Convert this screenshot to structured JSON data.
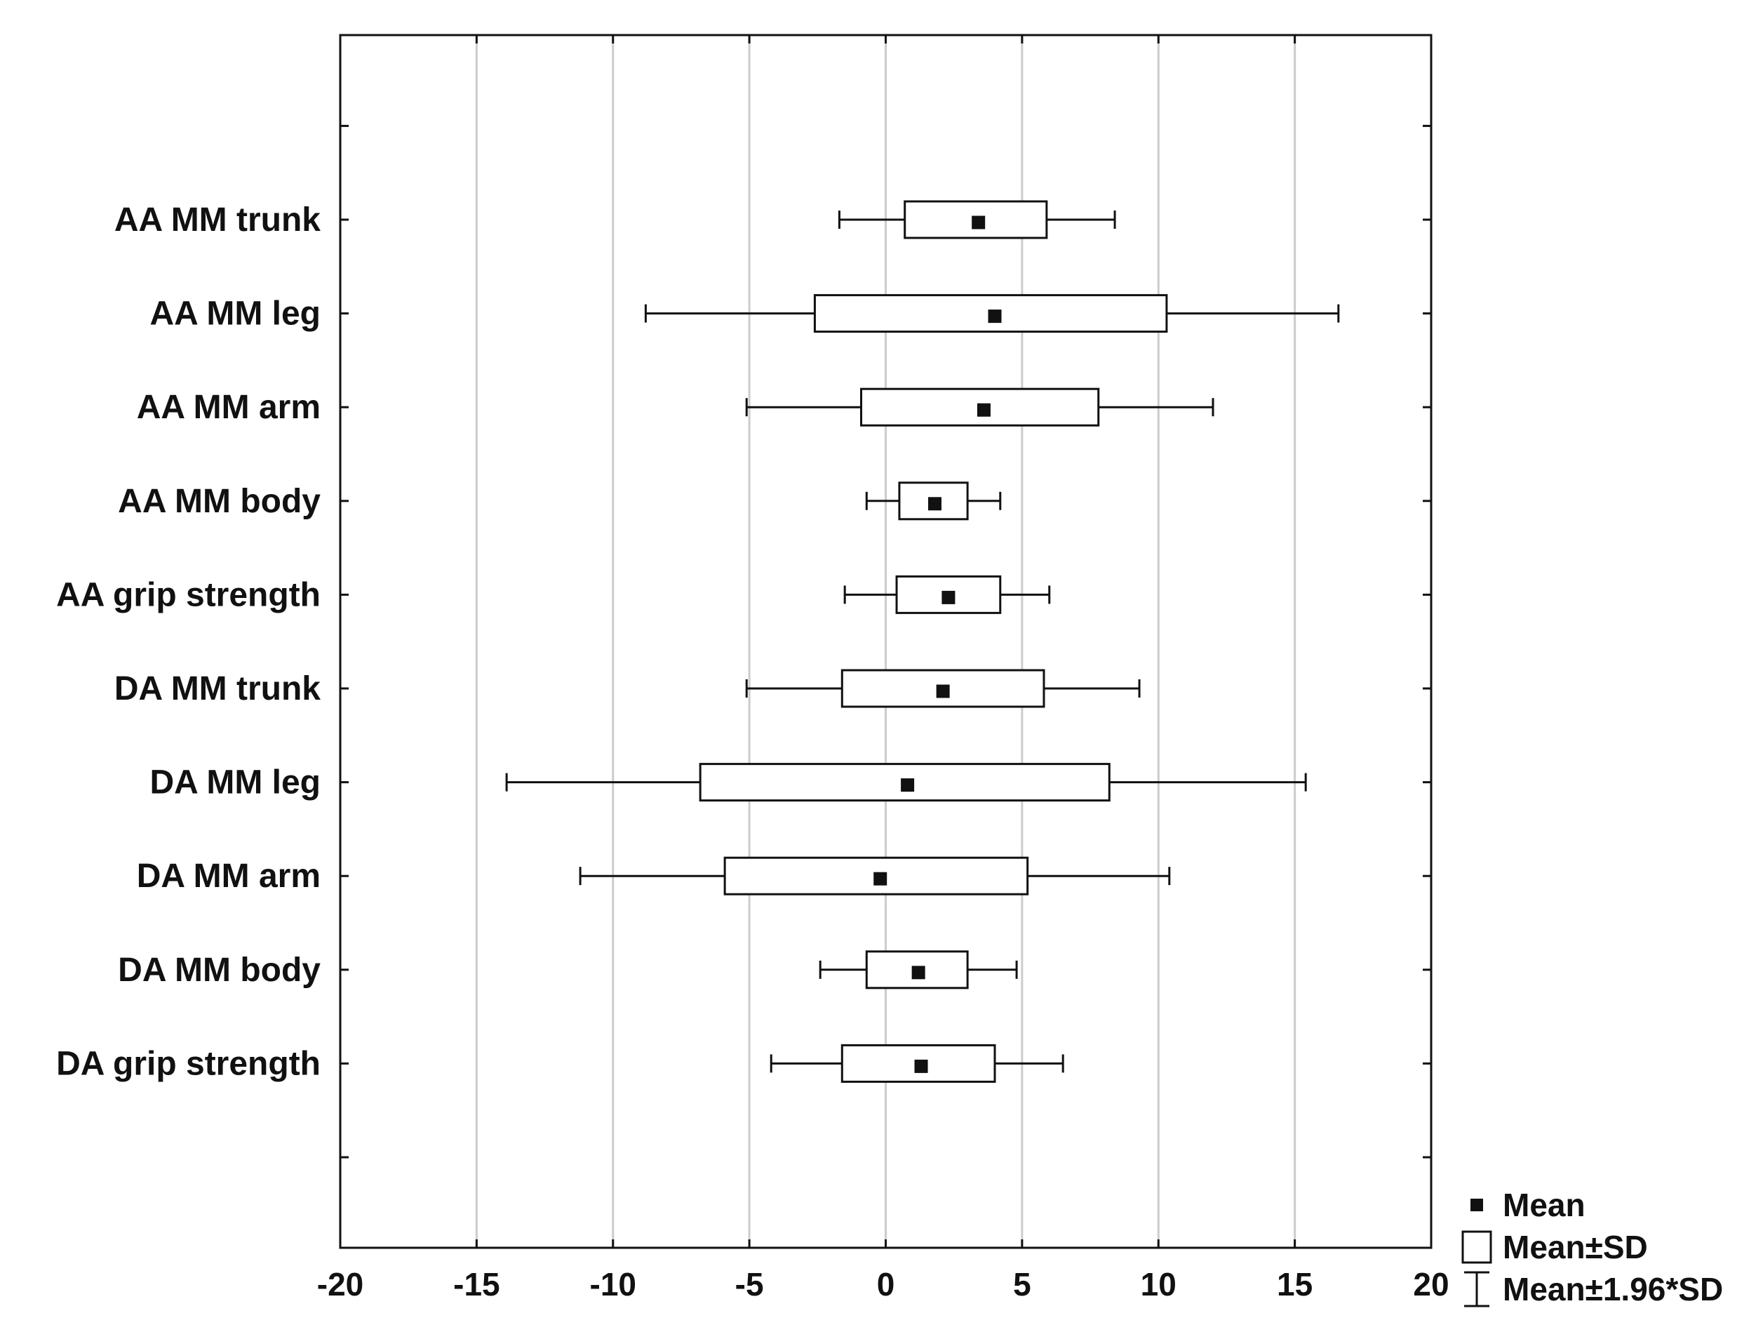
{
  "chart_data": {
    "type": "box",
    "title": "",
    "xlabel": "",
    "ylabel": "",
    "xlim": [
      -20,
      20
    ],
    "xticks": [
      "-20",
      "-15",
      "-10",
      "-5",
      "0",
      "5",
      "10",
      "15",
      "20"
    ],
    "xtick_values": [
      -20,
      -15,
      -10,
      -5,
      0,
      5,
      10,
      15,
      20
    ],
    "grid": "vertical",
    "categories": [
      "AA MM trunk",
      "AA MM leg",
      "AA MM arm",
      "AA MM body",
      "AA grip strength",
      "DA MM trunk",
      "DA MM leg",
      "DA MM arm",
      "DA MM body",
      "DA grip strength"
    ],
    "series": [
      {
        "category": "AA MM trunk",
        "mean": 3.4,
        "sd_low": 0.7,
        "sd_high": 5.9,
        "ci_low": -1.7,
        "ci_high": 8.4
      },
      {
        "category": "AA MM leg",
        "mean": 4.0,
        "sd_low": -2.6,
        "sd_high": 10.3,
        "ci_low": -8.8,
        "ci_high": 16.6
      },
      {
        "category": "AA MM arm",
        "mean": 3.6,
        "sd_low": -0.9,
        "sd_high": 7.8,
        "ci_low": -5.1,
        "ci_high": 12.0
      },
      {
        "category": "AA MM body",
        "mean": 1.8,
        "sd_low": 0.5,
        "sd_high": 3.0,
        "ci_low": -0.7,
        "ci_high": 4.2
      },
      {
        "category": "AA grip strength",
        "mean": 2.3,
        "sd_low": 0.4,
        "sd_high": 4.2,
        "ci_low": -1.5,
        "ci_high": 6.0
      },
      {
        "category": "DA MM trunk",
        "mean": 2.1,
        "sd_low": -1.6,
        "sd_high": 5.8,
        "ci_low": -5.1,
        "ci_high": 9.3
      },
      {
        "category": "DA MM leg",
        "mean": 0.8,
        "sd_low": -6.8,
        "sd_high": 8.2,
        "ci_low": -13.9,
        "ci_high": 15.4
      },
      {
        "category": "DA MM arm",
        "mean": -0.2,
        "sd_low": -5.9,
        "sd_high": 5.2,
        "ci_low": -11.2,
        "ci_high": 10.4
      },
      {
        "category": "DA MM body",
        "mean": 1.2,
        "sd_low": -0.7,
        "sd_high": 3.0,
        "ci_low": -2.4,
        "ci_high": 4.8
      },
      {
        "category": "DA grip strength",
        "mean": 1.3,
        "sd_low": -1.6,
        "sd_high": 4.0,
        "ci_low": -4.2,
        "ci_high": 6.5
      }
    ],
    "legend": {
      "position": "bottom-right",
      "items": [
        {
          "symbol": "mean-marker",
          "label": "Mean"
        },
        {
          "symbol": "sd-box",
          "label": "Mean±SD"
        },
        {
          "symbol": "ci-whisker",
          "label": "Mean±1.96*SD"
        }
      ]
    },
    "colors": {
      "ink": "#111111",
      "grid": "#cccccc",
      "box_fill": "#ffffff",
      "background": "#ffffff"
    }
  }
}
